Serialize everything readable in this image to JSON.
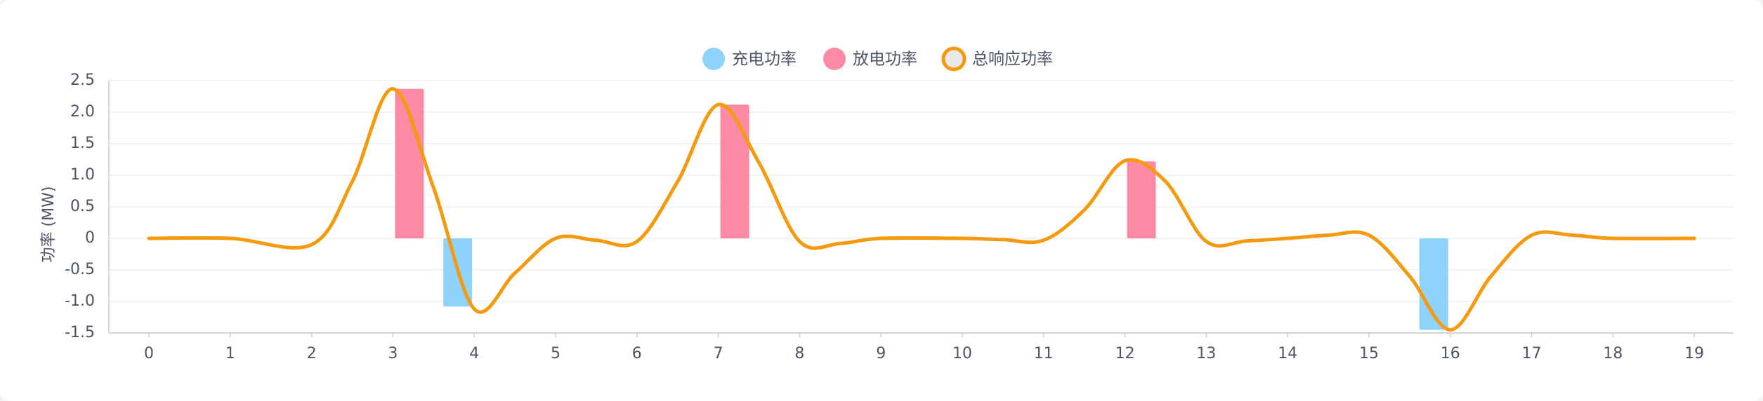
{
  "chart_data": {
    "type": "bar",
    "title": "",
    "xlabel": "",
    "ylabel": "功率 (MW)",
    "categories": [
      "0",
      "1",
      "2",
      "3",
      "4",
      "5",
      "6",
      "7",
      "8",
      "9",
      "10",
      "11",
      "12",
      "13",
      "14",
      "15",
      "16",
      "17",
      "18",
      "19"
    ],
    "ylim": [
      -1.5,
      2.5
    ],
    "yticks": [
      "2.5",
      "2.0",
      "1.5",
      "1.0",
      "0.5",
      "0",
      "-0.5",
      "-1.0",
      "-1.5"
    ],
    "grid": true,
    "legend_position": "top-center",
    "series": [
      {
        "name": "充电功率",
        "type": "bar",
        "color": "#8ed3fb",
        "values": [
          0,
          0,
          0,
          0,
          -1.08,
          0,
          0,
          0,
          0,
          0,
          0,
          0,
          0,
          0,
          0,
          0,
          -1.45,
          0,
          0,
          0
        ]
      },
      {
        "name": "放电功率",
        "type": "bar",
        "color": "#fd8aa4",
        "values": [
          0,
          0,
          0,
          2.37,
          0,
          0,
          0,
          2.12,
          0,
          0,
          0,
          0,
          1.22,
          0,
          0,
          0,
          0,
          0,
          0,
          0
        ]
      },
      {
        "name": "总响应功率",
        "type": "line",
        "color": "#f59a0f",
        "points": [
          [
            0,
            0
          ],
          [
            1,
            0
          ],
          [
            2,
            -0.1
          ],
          [
            2.5,
            0.9
          ],
          [
            3,
            2.37
          ],
          [
            3.5,
            0.8
          ],
          [
            4,
            -1.12
          ],
          [
            4.5,
            -0.55
          ],
          [
            5,
            0
          ],
          [
            5.5,
            -0.03
          ],
          [
            6,
            -0.05
          ],
          [
            6.5,
            0.9
          ],
          [
            7,
            2.12
          ],
          [
            7.5,
            1.2
          ],
          [
            8,
            -0.05
          ],
          [
            8.5,
            -0.08
          ],
          [
            9,
            0
          ],
          [
            10,
            0
          ],
          [
            10.5,
            -0.02
          ],
          [
            11,
            -0.03
          ],
          [
            11.5,
            0.45
          ],
          [
            12,
            1.23
          ],
          [
            12.5,
            0.9
          ],
          [
            13,
            -0.05
          ],
          [
            13.5,
            -0.04
          ],
          [
            14,
            0
          ],
          [
            14.5,
            0.05
          ],
          [
            15,
            0.05
          ],
          [
            15.5,
            -0.6
          ],
          [
            16,
            -1.45
          ],
          [
            16.5,
            -0.6
          ],
          [
            17,
            0.05
          ],
          [
            17.5,
            0.05
          ],
          [
            18,
            0
          ],
          [
            19,
            0
          ]
        ]
      }
    ]
  }
}
